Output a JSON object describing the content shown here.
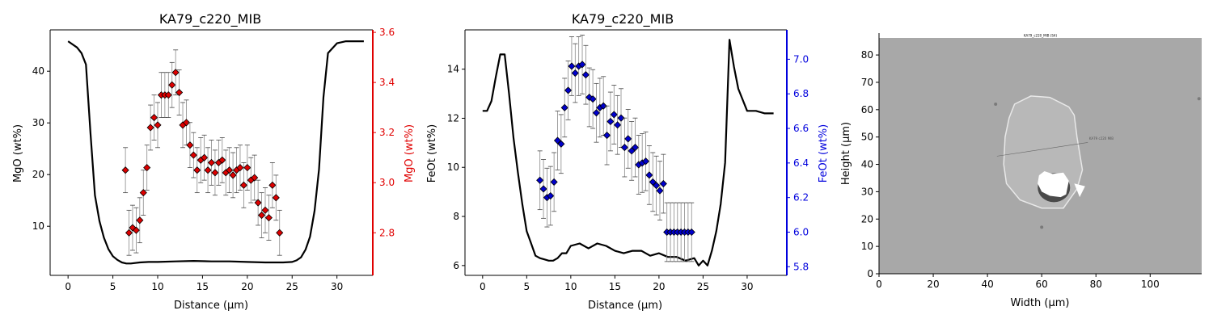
{
  "chart_data": [
    {
      "type": "line+scatter",
      "title": "KA79_c220_MIB",
      "xlabel": "Distance (µm)",
      "ylabel_left": "MgO (wt%)",
      "ylabel_right": "MgO (wt%)",
      "xlim": [
        -2,
        34
      ],
      "ylim_left": [
        0.5,
        48
      ],
      "ylim_right": [
        2.63,
        3.61
      ],
      "xticks": [
        0,
        5,
        10,
        15,
        20,
        25,
        30
      ],
      "yticks_left": [
        10,
        20,
        30,
        40
      ],
      "yticks_right": [
        2.8,
        3.0,
        3.2,
        3.4,
        3.6
      ],
      "right_axis_color": "#e00000",
      "line_color": "#000000",
      "marker_color": "#dd0000",
      "line_series": {
        "x": [
          0,
          1,
          1.5,
          2,
          2.5,
          3,
          3.5,
          4,
          4.5,
          5,
          5.5,
          6,
          6.5,
          7,
          8,
          9,
          10,
          12,
          14,
          16,
          18,
          20,
          22,
          24,
          25,
          25.5,
          26,
          26.5,
          27,
          27.5,
          28,
          28.5,
          29,
          30,
          31,
          32,
          33
        ],
        "y": [
          45.8,
          44.6,
          43.5,
          41.3,
          28.0,
          16.0,
          11.0,
          7.8,
          5.6,
          4.2,
          3.5,
          3.0,
          2.8,
          2.8,
          3.0,
          3.1,
          3.1,
          3.2,
          3.3,
          3.2,
          3.2,
          3.1,
          3.0,
          3.0,
          3.1,
          3.4,
          4.0,
          5.5,
          8.0,
          13.0,
          21.0,
          35.0,
          43.5,
          45.4,
          45.8,
          45.8,
          45.8
        ]
      },
      "point_series": {
        "x": [
          6.4,
          6.8,
          7.2,
          7.6,
          8.0,
          8.4,
          8.8,
          9.2,
          9.6,
          10.0,
          10.4,
          10.8,
          11.2,
          11.6,
          12.0,
          12.4,
          12.8,
          13.2,
          13.6,
          14.0,
          14.4,
          14.8,
          15.2,
          15.6,
          16.0,
          16.4,
          16.8,
          17.2,
          17.6,
          18.0,
          18.4,
          18.8,
          19.2,
          19.6,
          20.0,
          20.4,
          20.8,
          21.2,
          21.6,
          22.0,
          22.4,
          22.8,
          23.2,
          23.6
        ],
        "y": [
          3.05,
          2.8,
          2.82,
          2.81,
          2.85,
          2.96,
          3.06,
          3.22,
          3.26,
          3.23,
          3.35,
          3.35,
          3.35,
          3.39,
          3.44,
          3.36,
          3.23,
          3.24,
          3.15,
          3.11,
          3.05,
          3.09,
          3.1,
          3.05,
          3.08,
          3.04,
          3.08,
          3.09,
          3.04,
          3.05,
          3.03,
          3.05,
          3.06,
          2.99,
          3.06,
          3.01,
          3.02,
          2.92,
          2.87,
          2.89,
          2.86,
          2.99,
          2.94,
          2.8
        ],
        "err": [
          0.09,
          0.09,
          0.09,
          0.09,
          0.09,
          0.09,
          0.09,
          0.09,
          0.09,
          0.09,
          0.09,
          0.09,
          0.09,
          0.09,
          0.09,
          0.09,
          0.09,
          0.09,
          0.09,
          0.09,
          0.09,
          0.09,
          0.09,
          0.09,
          0.09,
          0.09,
          0.09,
          0.09,
          0.09,
          0.09,
          0.09,
          0.09,
          0.09,
          0.09,
          0.09,
          0.09,
          0.09,
          0.09,
          0.09,
          0.09,
          0.09,
          0.09,
          0.09,
          0.09
        ]
      }
    },
    {
      "type": "line+scatter",
      "title": "KA79_c220_MIB",
      "xlabel": "Distance (µm)",
      "ylabel_left": "FeOt (wt%)",
      "ylabel_right": "FeOt (wt%)",
      "xlim": [
        -2,
        34.5
      ],
      "ylim_left": [
        5.6,
        15.6
      ],
      "ylim_right": [
        5.75,
        7.17
      ],
      "xticks": [
        0,
        5,
        10,
        15,
        20,
        25,
        30
      ],
      "yticks_left": [
        6,
        8,
        10,
        12,
        14
      ],
      "yticks_right": [
        5.8,
        6.0,
        6.2,
        6.4,
        6.6,
        6.8,
        7.0
      ],
      "right_axis_color": "#0000dd",
      "line_color": "#000000",
      "marker_color": "#0000cc",
      "line_series": {
        "x": [
          0,
          0.5,
          1,
          1.5,
          2,
          2.5,
          3,
          3.5,
          4,
          4.5,
          5,
          5.5,
          6,
          6.5,
          7,
          7.5,
          8,
          8.5,
          9,
          9.5,
          10,
          11,
          12,
          13,
          14,
          15,
          16,
          17,
          18,
          19,
          20,
          21,
          22,
          23,
          24,
          24.5,
          25,
          25.5,
          26,
          26.5,
          27,
          27.5,
          28,
          28.5,
          29,
          30,
          31,
          32,
          33
        ],
        "y": [
          12.3,
          12.3,
          12.7,
          13.7,
          14.6,
          14.6,
          13.0,
          11.2,
          9.8,
          8.5,
          7.4,
          6.9,
          6.4,
          6.3,
          6.25,
          6.2,
          6.2,
          6.3,
          6.5,
          6.5,
          6.8,
          6.9,
          6.7,
          6.9,
          6.8,
          6.6,
          6.5,
          6.6,
          6.6,
          6.4,
          6.5,
          6.35,
          6.35,
          6.2,
          6.3,
          6.0,
          6.2,
          6.0,
          6.6,
          7.4,
          8.5,
          10.2,
          15.2,
          14.1,
          13.2,
          12.3,
          12.3,
          12.2,
          12.2
        ]
      },
      "point_series": {
        "x": [
          6.5,
          6.9,
          7.3,
          7.7,
          8.1,
          8.5,
          8.9,
          9.3,
          9.7,
          10.1,
          10.5,
          10.9,
          11.3,
          11.7,
          12.1,
          12.5,
          12.9,
          13.3,
          13.7,
          14.1,
          14.5,
          14.9,
          15.3,
          15.7,
          16.1,
          16.5,
          16.9,
          17.3,
          17.7,
          18.1,
          18.5,
          18.9,
          19.3,
          19.7,
          20.1,
          20.5,
          20.9,
          21.3,
          21.7,
          22.1,
          22.5,
          22.9,
          23.3,
          23.7
        ],
        "y": [
          6.3,
          6.25,
          6.2,
          6.21,
          6.29,
          6.53,
          6.51,
          6.72,
          6.82,
          6.96,
          6.92,
          6.96,
          6.97,
          6.91,
          6.78,
          6.77,
          6.69,
          6.72,
          6.73,
          6.56,
          6.64,
          6.68,
          6.62,
          6.66,
          6.49,
          6.54,
          6.47,
          6.49,
          6.39,
          6.4,
          6.41,
          6.33,
          6.29,
          6.27,
          6.24,
          6.28,
          6.0,
          6.0,
          6.0,
          6.0,
          6.0,
          6.0,
          6.0,
          6.0
        ],
        "err": [
          0.17,
          0.17,
          0.17,
          0.17,
          0.17,
          0.17,
          0.17,
          0.17,
          0.17,
          0.17,
          0.17,
          0.17,
          0.17,
          0.17,
          0.17,
          0.17,
          0.17,
          0.17,
          0.17,
          0.17,
          0.17,
          0.17,
          0.17,
          0.17,
          0.17,
          0.17,
          0.17,
          0.17,
          0.17,
          0.17,
          0.17,
          0.17,
          0.17,
          0.17,
          0.17,
          0.17,
          0.17,
          0.17,
          0.17,
          0.17,
          0.17,
          0.17,
          0.17,
          0.17
        ]
      }
    },
    {
      "type": "image",
      "xlabel": "Width (µm)",
      "ylabel": "Height (µm)",
      "xlim": [
        0,
        119
      ],
      "ylim": [
        0,
        88
      ],
      "xticks": [
        0,
        20,
        40,
        60,
        80,
        100
      ],
      "yticks": [
        0,
        10,
        20,
        30,
        40,
        50,
        60,
        70,
        80
      ],
      "image_caption": "KA79_c220_MIB (S4)",
      "traverse_label": "KA79 c220 MIB",
      "background_color": "#a8a8a8",
      "crystal_color": "#b8b8b8"
    }
  ]
}
